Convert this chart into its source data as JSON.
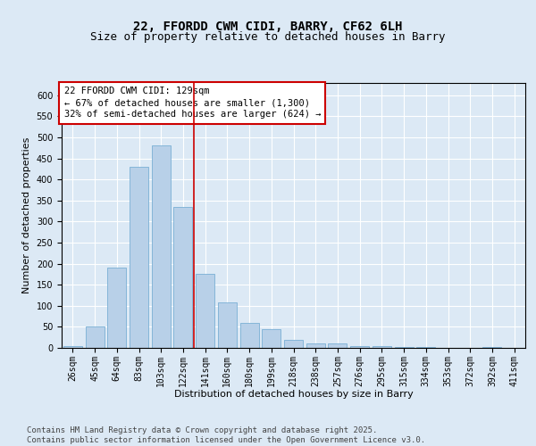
{
  "title1": "22, FFORDD CWM CIDI, BARRY, CF62 6LH",
  "title2": "Size of property relative to detached houses in Barry",
  "xlabel": "Distribution of detached houses by size in Barry",
  "ylabel": "Number of detached properties",
  "categories": [
    "26sqm",
    "45sqm",
    "64sqm",
    "83sqm",
    "103sqm",
    "122sqm",
    "141sqm",
    "160sqm",
    "180sqm",
    "199sqm",
    "218sqm",
    "238sqm",
    "257sqm",
    "276sqm",
    "295sqm",
    "315sqm",
    "334sqm",
    "353sqm",
    "372sqm",
    "392sqm",
    "411sqm"
  ],
  "values": [
    4,
    50,
    190,
    430,
    480,
    335,
    175,
    108,
    60,
    45,
    20,
    10,
    10,
    5,
    4,
    3,
    2,
    1,
    1,
    2,
    1
  ],
  "bar_color": "#b8d0e8",
  "bar_edge_color": "#7aafd4",
  "vline_x": 5.5,
  "vline_color": "#cc0000",
  "annotation_box_text": "22 FFORDD CWM CIDI: 129sqm\n← 67% of detached houses are smaller (1,300)\n32% of semi-detached houses are larger (624) →",
  "annotation_fontsize": 7.5,
  "box_edge_color": "#cc0000",
  "ylim": [
    0,
    630
  ],
  "yticks": [
    0,
    50,
    100,
    150,
    200,
    250,
    300,
    350,
    400,
    450,
    500,
    550,
    600
  ],
  "background_color": "#dce9f5",
  "plot_bg_color": "#dce9f5",
  "footer_text": "Contains HM Land Registry data © Crown copyright and database right 2025.\nContains public sector information licensed under the Open Government Licence v3.0.",
  "title1_fontsize": 10,
  "title2_fontsize": 9,
  "axis_label_fontsize": 8,
  "tick_fontsize": 7,
  "footer_fontsize": 6.5
}
